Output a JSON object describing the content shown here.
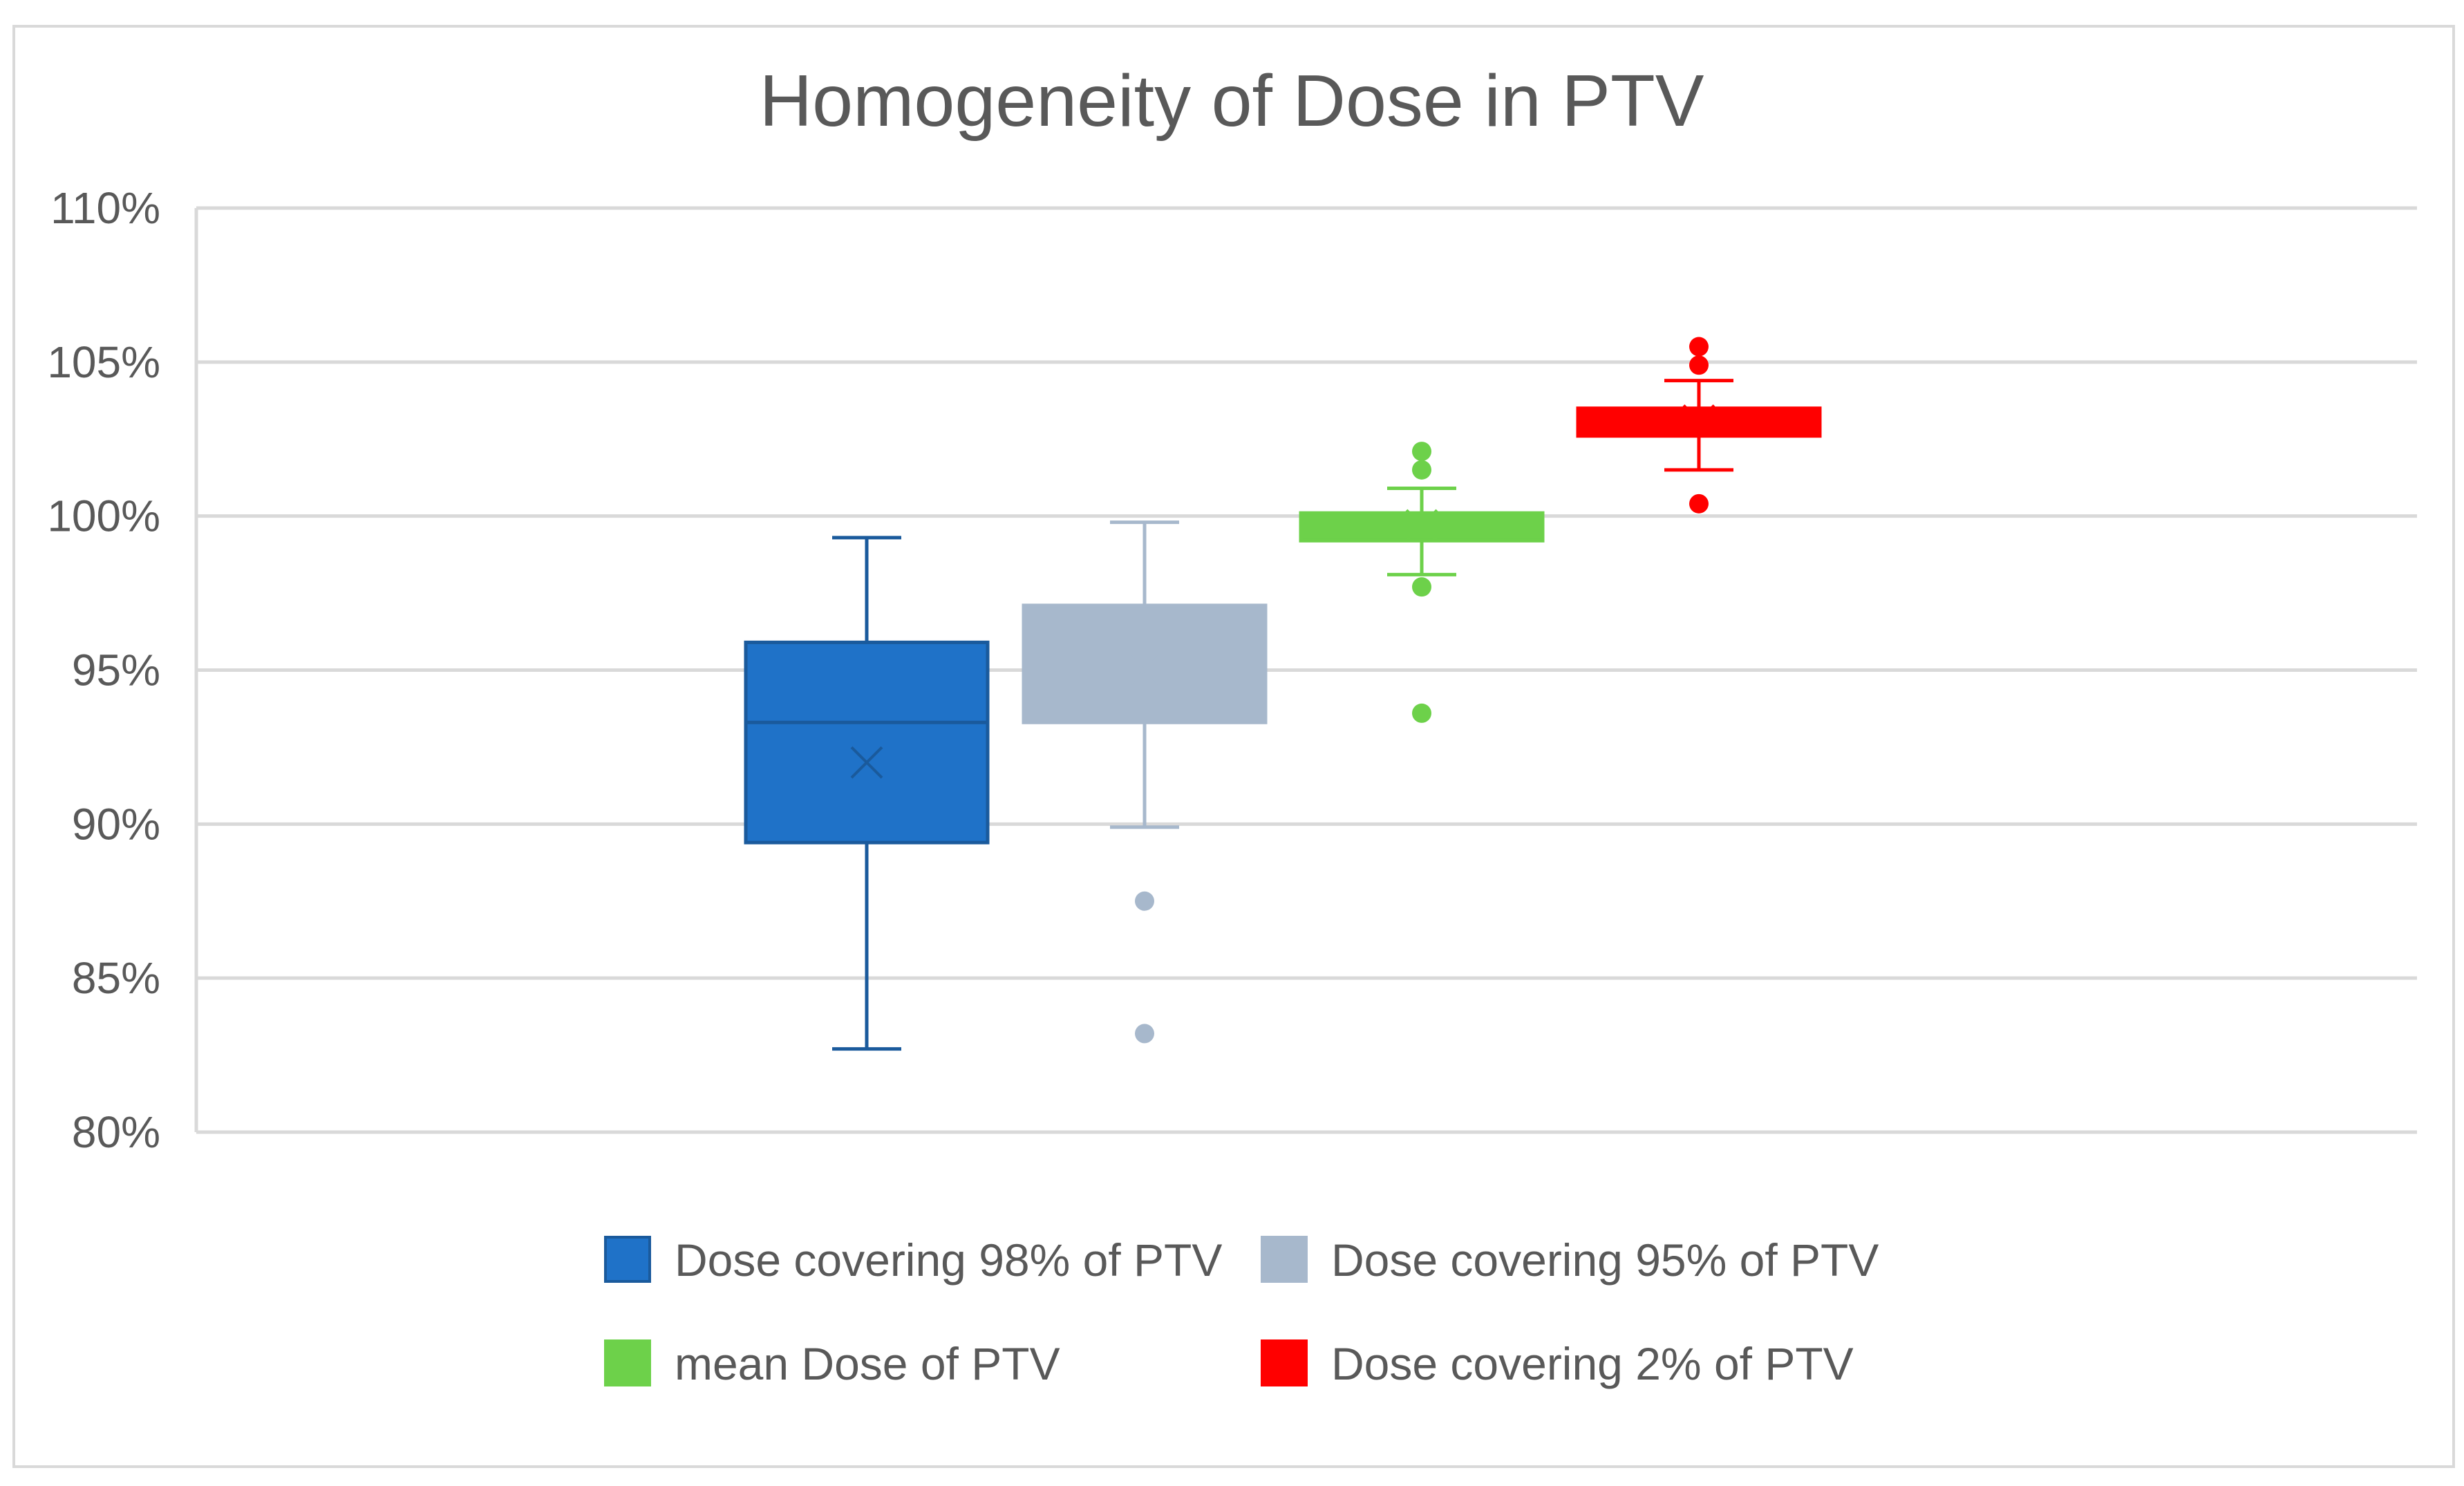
{
  "chart_data": {
    "type": "boxplot",
    "title": "Homogeneity of Dose in PTV",
    "xlabel": "",
    "ylabel": "",
    "ylim": [
      0.8,
      1.1
    ],
    "y_ticks": [
      0.8,
      0.85,
      0.9,
      0.95,
      1.0,
      1.05,
      1.1
    ],
    "y_tick_labels": [
      "80%",
      "85%",
      "90%",
      "95%",
      "100%",
      "105%",
      "110%"
    ],
    "grid": true,
    "legend_position": "bottom",
    "series": [
      {
        "name": "Dose covering 98% of PTV",
        "color": "#1f72c8",
        "edge_color": "#1a5a9c",
        "min": 0.827,
        "q1": 0.894,
        "median": 0.933,
        "q3": 0.959,
        "max": 0.993,
        "mean": 0.92,
        "outliers": []
      },
      {
        "name": "Dose covering 95% of PTV",
        "color": "#a7b8cc",
        "edge_color": "#a7b8cc",
        "min": 0.899,
        "q1": 0.933,
        "median": 0.944,
        "q3": 0.971,
        "max": 0.998,
        "mean": 0.95,
        "outliers": [
          0.875,
          0.832
        ]
      },
      {
        "name": "mean Dose of PTV",
        "color": "#6dd14a",
        "edge_color": "#6dd14a",
        "min": 0.981,
        "q1": 0.992,
        "median": 0.997,
        "q3": 1.001,
        "max": 1.009,
        "mean": 0.997,
        "outliers": [
          1.021,
          1.015,
          0.977,
          0.936
        ]
      },
      {
        "name": "Dose covering 2% of PTV",
        "color": "#ff0000",
        "edge_color": "#ff0000",
        "min": 1.015,
        "q1": 1.026,
        "median": 1.031,
        "q3": 1.035,
        "max": 1.044,
        "mean": 1.031,
        "outliers": [
          1.055,
          1.049,
          1.004
        ]
      }
    ]
  }
}
